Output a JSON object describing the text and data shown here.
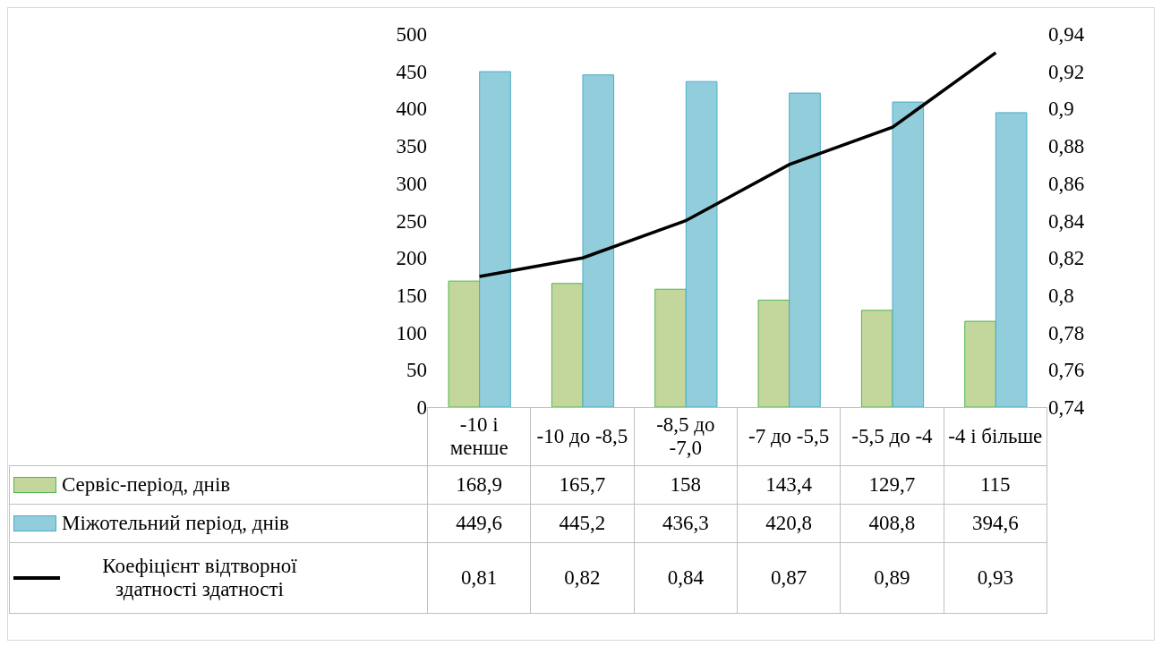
{
  "chart_data": {
    "type": "bar",
    "categories": [
      "-10 і менше",
      "-10 до -8,5",
      "-8,5 до -7,0",
      "-7 до -5,5",
      "-5,5 до -4",
      "-4 і більше"
    ],
    "series": [
      {
        "name": "Сервіс-період, днів",
        "color": "#c3d69b",
        "values": [
          168.9,
          165.7,
          158,
          143.4,
          129.7,
          115
        ],
        "value_labels": [
          "168,9",
          "165,7",
          "158",
          "143,4",
          "129,7",
          "115"
        ]
      },
      {
        "name": "Міжотельний період, днів",
        "color": "#92cddc",
        "values": [
          449.6,
          445.2,
          436.3,
          420.8,
          408.8,
          394.6
        ],
        "value_labels": [
          "449,6",
          "445,2",
          "436,3",
          "420,8",
          "408,8",
          "394,6"
        ]
      },
      {
        "name": "Коефіцієнт відтворної здатності здатності",
        "type": "line",
        "axis": "y2",
        "color": "#000000",
        "values": [
          0.81,
          0.82,
          0.84,
          0.87,
          0.89,
          0.93
        ],
        "value_labels": [
          "0,81",
          "0,82",
          "0,84",
          "0,87",
          "0,89",
          "0,93"
        ]
      }
    ],
    "ylim": [
      0,
      500
    ],
    "yticks": [
      0,
      50,
      100,
      150,
      200,
      250,
      300,
      350,
      400,
      450,
      500
    ],
    "y2lim": [
      0.74,
      0.94
    ],
    "y2ticks": [
      {
        "value": 0.74,
        "label": "0,74"
      },
      {
        "value": 0.76,
        "label": "0,76"
      },
      {
        "value": 0.78,
        "label": "0,78"
      },
      {
        "value": 0.8,
        "label": "0,8"
      },
      {
        "value": 0.82,
        "label": "0,82"
      },
      {
        "value": 0.84,
        "label": "0,84"
      },
      {
        "value": 0.86,
        "label": "0,86"
      },
      {
        "value": 0.88,
        "label": "0,88"
      },
      {
        "value": 0.9,
        "label": "0,9"
      },
      {
        "value": 0.92,
        "label": "0,92"
      },
      {
        "value": 0.94,
        "label": "0,94"
      }
    ],
    "grid": false,
    "legend": "bottom left",
    "marker": "none",
    "line_style": "solid"
  }
}
